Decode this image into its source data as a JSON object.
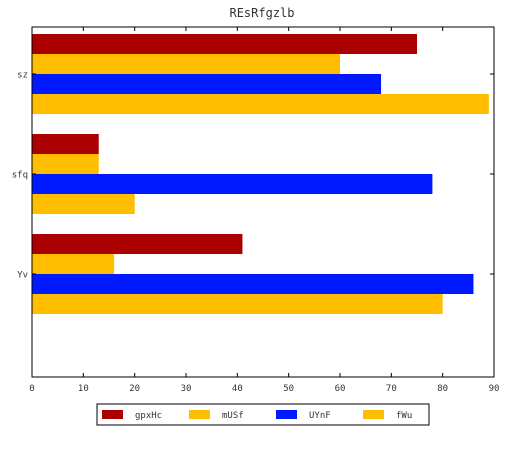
{
  "chart_data": {
    "type": "bar",
    "orientation": "horizontal",
    "title": "REsRfgzlb",
    "xlabel": "",
    "ylabel": "",
    "xlim": [
      0,
      90
    ],
    "xticks": [
      0,
      10,
      20,
      30,
      40,
      50,
      60,
      70,
      80,
      90
    ],
    "categories": [
      "sz",
      "sfq",
      "Yv"
    ],
    "series": [
      {
        "name": "gpxHc",
        "color": "#aa0000",
        "values": [
          75,
          13,
          41
        ]
      },
      {
        "name": "mUSf",
        "color": "#ffbf00",
        "values": [
          60,
          13,
          16
        ]
      },
      {
        "name": "UYnF",
        "color": "#0019ff",
        "values": [
          68,
          78,
          86
        ]
      },
      {
        "name": "fWu",
        "color": "#ffbf00",
        "values": [
          89,
          20,
          80
        ]
      }
    ],
    "grid": false,
    "legend_position": "bottom"
  }
}
